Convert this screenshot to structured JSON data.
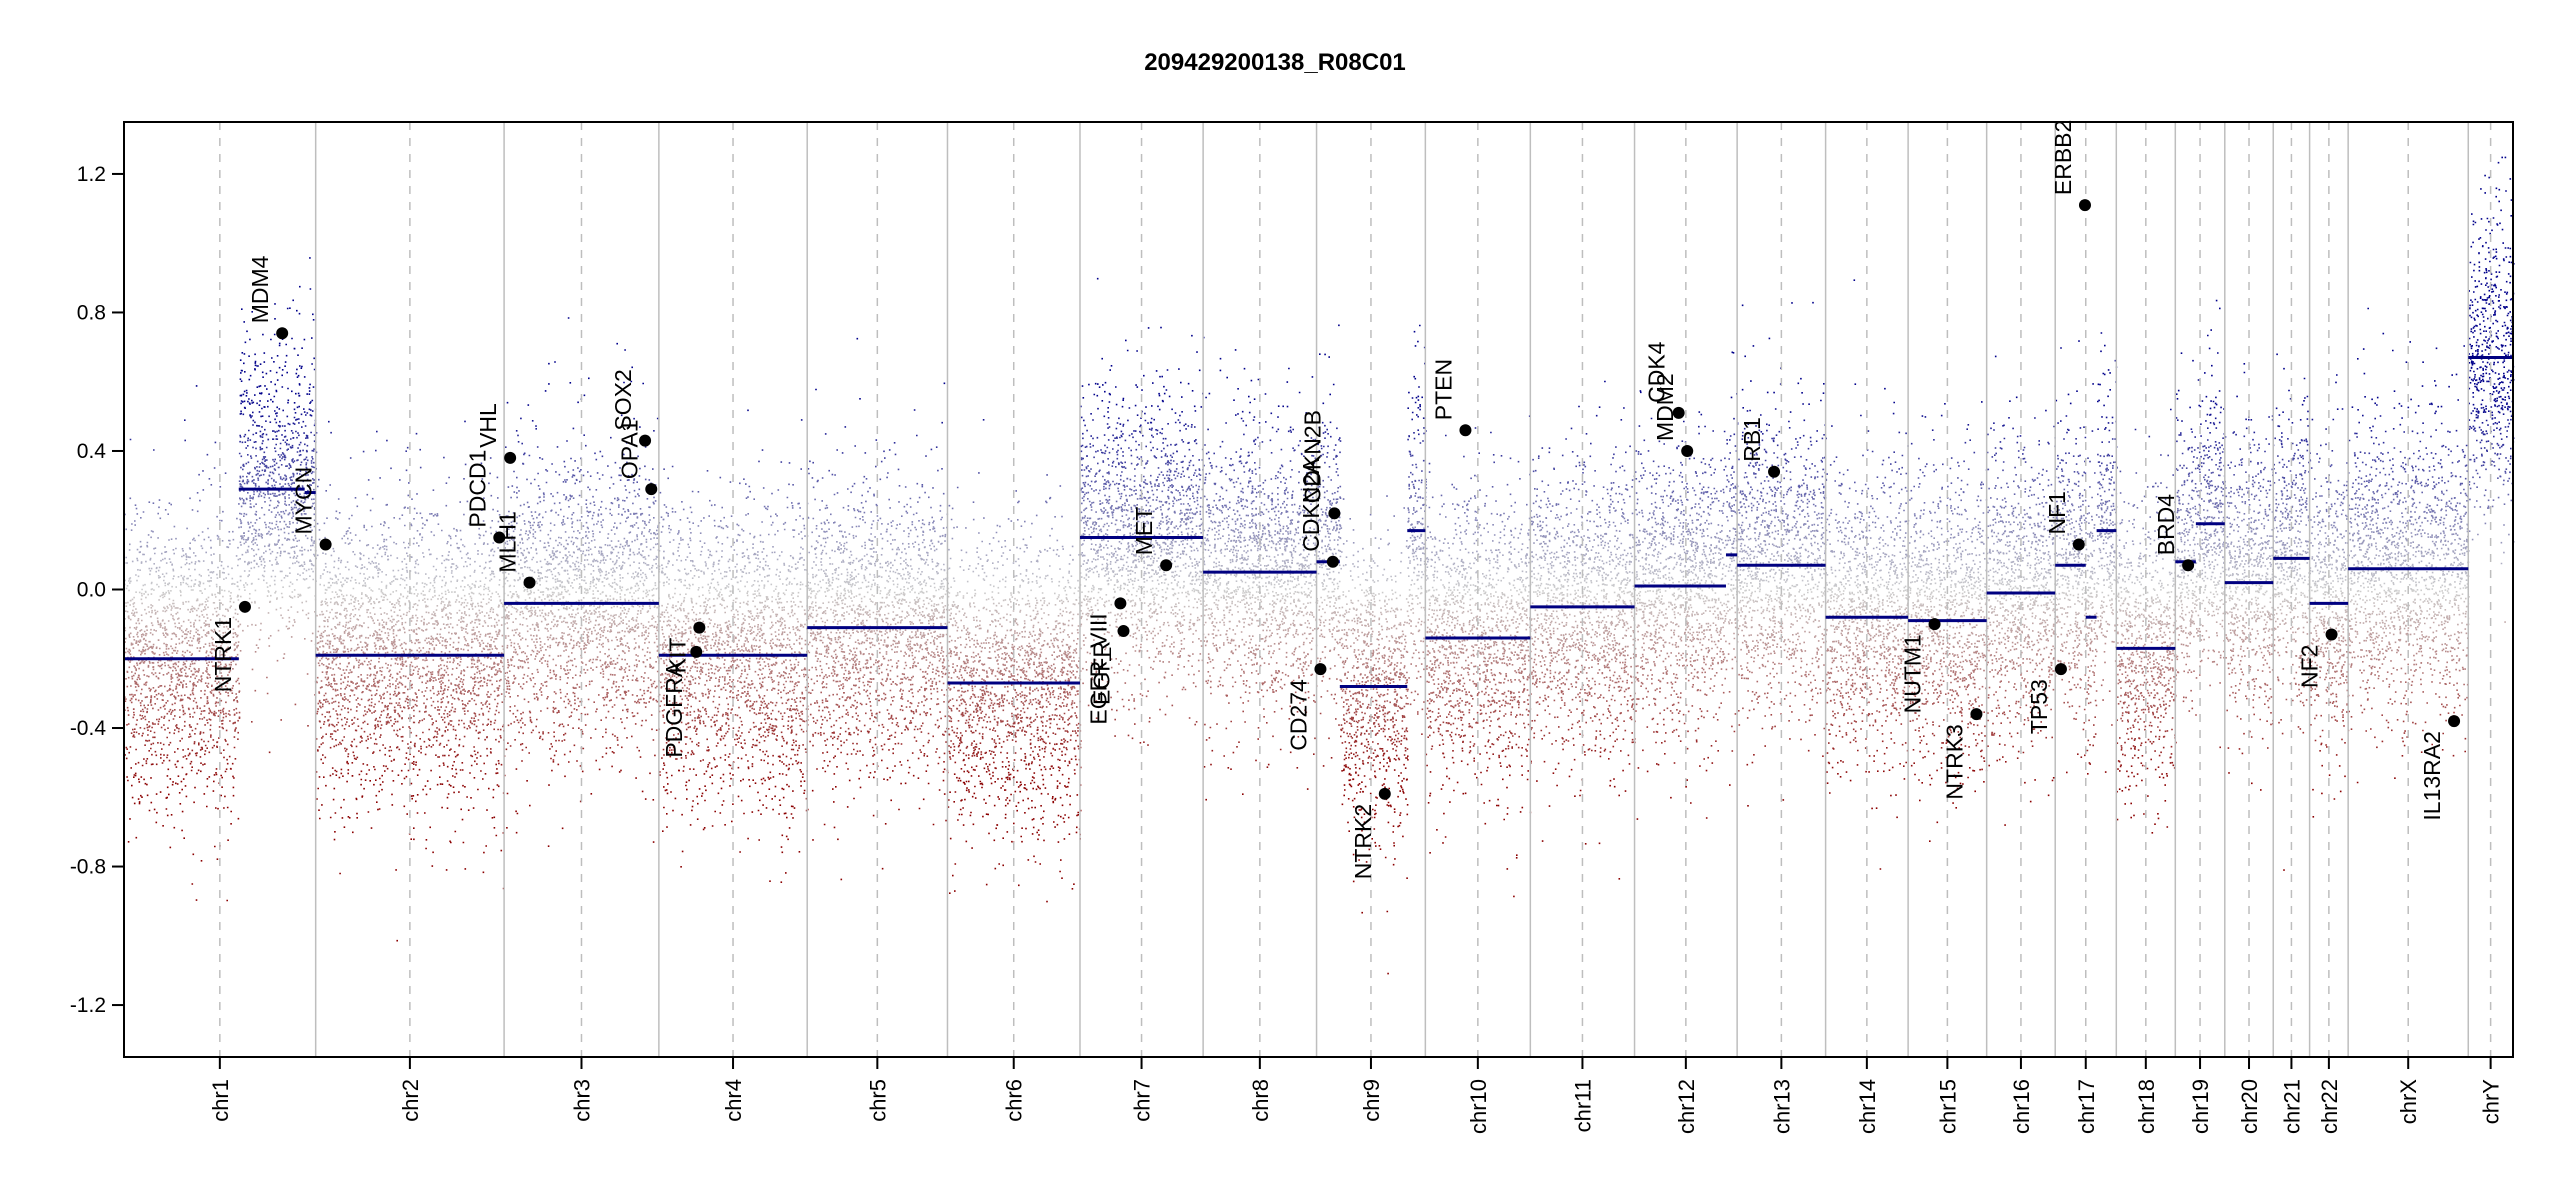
{
  "chart_data": {
    "type": "scatter",
    "title": "209429200138_R08C01",
    "xlabel": "",
    "ylabel": "",
    "ylim": [
      -1.35,
      1.35
    ],
    "yticks": [
      -1.2,
      -0.8,
      -0.4,
      0.0,
      0.4,
      0.8,
      1.2
    ],
    "ytick_labels": [
      "-1.2",
      "-0.8",
      "-0.4",
      "0.0",
      "0.4",
      "0.8",
      "1.2"
    ],
    "grid": false,
    "colors": {
      "gain": "#00008b",
      "loss": "#8b0000",
      "neutral": "#c8c8c8",
      "segment": "#000080",
      "separator": "#bebebe"
    },
    "chromosomes": [
      {
        "name": "chr1",
        "start": 0.0,
        "end": 247.2
      },
      {
        "name": "chr2",
        "start": 247.2,
        "end": 490.2
      },
      {
        "name": "chr3",
        "start": 490.2,
        "end": 689.8
      },
      {
        "name": "chr4",
        "start": 689.8,
        "end": 881.1
      },
      {
        "name": "chr5",
        "start": 881.1,
        "end": 1062.0
      },
      {
        "name": "chr6",
        "start": 1062.0,
        "end": 1232.9
      },
      {
        "name": "chr7",
        "start": 1232.9,
        "end": 1391.7
      },
      {
        "name": "chr8",
        "start": 1391.7,
        "end": 1538.0
      },
      {
        "name": "chr9",
        "start": 1538.0,
        "end": 1678.3
      },
      {
        "name": "chr10",
        "start": 1678.3,
        "end": 1813.7
      },
      {
        "name": "chr11",
        "start": 1813.7,
        "end": 1948.1
      },
      {
        "name": "chr12",
        "start": 1948.1,
        "end": 2080.4
      },
      {
        "name": "chr13",
        "start": 2080.4,
        "end": 2194.5
      },
      {
        "name": "chr14",
        "start": 2194.5,
        "end": 2300.9
      },
      {
        "name": "chr15",
        "start": 2300.9,
        "end": 2402.2
      },
      {
        "name": "chr16",
        "start": 2402.2,
        "end": 2490.6
      },
      {
        "name": "chr17",
        "start": 2490.6,
        "end": 2569.4
      },
      {
        "name": "chr18",
        "start": 2569.4,
        "end": 2645.5
      },
      {
        "name": "chr19",
        "start": 2645.5,
        "end": 2709.3
      },
      {
        "name": "chr20",
        "start": 2709.3,
        "end": 2771.8
      },
      {
        "name": "chr21",
        "start": 2771.8,
        "end": 2818.7
      },
      {
        "name": "chr22",
        "start": 2818.7,
        "end": 2868.4
      },
      {
        "name": "chrX",
        "start": 2868.4,
        "end": 3023.3
      },
      {
        "name": "chrY",
        "start": 3023.3,
        "end": 3081.0
      }
    ],
    "segments": [
      {
        "chr": "chr1",
        "x0": 0.0,
        "x1": 148.0,
        "value": -0.2
      },
      {
        "chr": "chr1",
        "x0": 148.0,
        "x1": 233.0,
        "value": 0.29
      },
      {
        "chr": "chr1",
        "x0": 233.0,
        "x1": 247.2,
        "value": 0.28
      },
      {
        "chr": "chr2",
        "x0": 247.2,
        "x1": 490.2,
        "value": -0.19
      },
      {
        "chr": "chr3",
        "x0": 490.2,
        "x1": 689.8,
        "value": -0.04
      },
      {
        "chr": "chr4",
        "x0": 689.8,
        "x1": 881.1,
        "value": -0.19
      },
      {
        "chr": "chr5",
        "x0": 881.1,
        "x1": 1062.0,
        "value": -0.11
      },
      {
        "chr": "chr6",
        "x0": 1062.0,
        "x1": 1232.9,
        "value": -0.27
      },
      {
        "chr": "chr7",
        "x0": 1232.9,
        "x1": 1391.7,
        "value": 0.15
      },
      {
        "chr": "chr8",
        "x0": 1391.7,
        "x1": 1538.0,
        "value": 0.05
      },
      {
        "chr": "chr9",
        "x0": 1538.0,
        "x1": 1568.0,
        "value": 0.08
      },
      {
        "chr": "chr9",
        "x0": 1568.0,
        "x1": 1655.0,
        "value": -0.28
      },
      {
        "chr": "chr9",
        "x0": 1655.0,
        "x1": 1678.3,
        "value": 0.17
      },
      {
        "chr": "chr10",
        "x0": 1678.3,
        "x1": 1813.7,
        "value": -0.14
      },
      {
        "chr": "chr11",
        "x0": 1813.7,
        "x1": 1948.1,
        "value": -0.05
      },
      {
        "chr": "chr12",
        "x0": 1948.1,
        "x1": 2066.0,
        "value": 0.01
      },
      {
        "chr": "chr12",
        "x0": 2066.0,
        "x1": 2080.4,
        "value": 0.1
      },
      {
        "chr": "chr13",
        "x0": 2080.4,
        "x1": 2194.5,
        "value": 0.07
      },
      {
        "chr": "chr14",
        "x0": 2194.5,
        "x1": 2300.9,
        "value": -0.08
      },
      {
        "chr": "chr15",
        "x0": 2300.9,
        "x1": 2402.2,
        "value": -0.09
      },
      {
        "chr": "chr16",
        "x0": 2402.2,
        "x1": 2490.6,
        "value": -0.01
      },
      {
        "chr": "chr17",
        "x0": 2490.6,
        "x1": 2530.0,
        "value": 0.07
      },
      {
        "chr": "chr17",
        "x0": 2530.0,
        "x1": 2544.0,
        "value": -0.08
      },
      {
        "chr": "chr17",
        "x0": 2544.0,
        "x1": 2569.4,
        "value": 0.17
      },
      {
        "chr": "chr18",
        "x0": 2569.4,
        "x1": 2645.5,
        "value": -0.17
      },
      {
        "chr": "chr19",
        "x0": 2645.5,
        "x1": 2672.0,
        "value": 0.08
      },
      {
        "chr": "chr19",
        "x0": 2672.0,
        "x1": 2709.3,
        "value": 0.19
      },
      {
        "chr": "chr20",
        "x0": 2709.3,
        "x1": 2771.8,
        "value": 0.02
      },
      {
        "chr": "chr21",
        "x0": 2771.8,
        "x1": 2818.7,
        "value": 0.09
      },
      {
        "chr": "chr22",
        "x0": 2818.7,
        "x1": 2868.4,
        "value": -0.04
      },
      {
        "chr": "chrX",
        "x0": 2868.4,
        "x1": 3023.3,
        "value": 0.06
      },
      {
        "chr": "chrY",
        "x0": 3023.3,
        "x1": 3081.0,
        "value": 0.67
      }
    ],
    "genes": [
      {
        "name": "NTRK1",
        "x": 156.0,
        "value": -0.05
      },
      {
        "name": "MDM4",
        "x": 204.0,
        "value": 0.74
      },
      {
        "name": "MYCN",
        "x": 260.0,
        "value": 0.13
      },
      {
        "name": "PDCD1",
        "x": 484.0,
        "value": 0.15
      },
      {
        "name": "VHL",
        "x": 498.0,
        "value": 0.38
      },
      {
        "name": "MLH1",
        "x": 523.0,
        "value": 0.02
      },
      {
        "name": "SOX2",
        "x": 672.0,
        "value": 0.43
      },
      {
        "name": "OPA1",
        "x": 680.0,
        "value": 0.29
      },
      {
        "name": "PDGFRA",
        "x": 738.0,
        "value": -0.18
      },
      {
        "name": "KIT",
        "x": 742.0,
        "value": -0.11
      },
      {
        "name": "EGFR_VIII",
        "x": 1285.0,
        "value": -0.04
      },
      {
        "name": "EGFR",
        "x": 1289.0,
        "value": -0.12
      },
      {
        "name": "MET",
        "x": 1344.0,
        "value": 0.07
      },
      {
        "name": "CD274",
        "x": 1543.0,
        "value": -0.23
      },
      {
        "name": "CDKN2A",
        "x": 1559.0,
        "value": 0.08
      },
      {
        "name": "CDKN2B",
        "x": 1561.0,
        "value": 0.22
      },
      {
        "name": "NTRK2",
        "x": 1626.0,
        "value": -0.59
      },
      {
        "name": "PTEN",
        "x": 1730.0,
        "value": 0.46
      },
      {
        "name": "CDK4",
        "x": 2005.0,
        "value": 0.51
      },
      {
        "name": "MDM2",
        "x": 2016.0,
        "value": 0.4
      },
      {
        "name": "RB1",
        "x": 2128.0,
        "value": 0.34
      },
      {
        "name": "NUTM1",
        "x": 2335.0,
        "value": -0.1
      },
      {
        "name": "NTRK3",
        "x": 2389.0,
        "value": -0.36
      },
      {
        "name": "TP53",
        "x": 2498.0,
        "value": -0.23
      },
      {
        "name": "NF1",
        "x": 2521.0,
        "value": 0.13
      },
      {
        "name": "ERBB2",
        "x": 2529.0,
        "value": 1.11
      },
      {
        "name": "BRD4",
        "x": 2662.0,
        "value": 0.07
      },
      {
        "name": "NF2",
        "x": 2847.0,
        "value": -0.13
      },
      {
        "name": "IL13RA2",
        "x": 3005.0,
        "value": -0.38
      }
    ],
    "gene_labels": {
      "NTRK1": "NTRK1",
      "MDM4": "MDM4",
      "MYCN": "MYCN",
      "PDCD1": "PDCD1",
      "VHL": "VHL",
      "MLH1": "MLH1",
      "SOX2": "SOX2",
      "OPA1": "OPA1",
      "PDGFRA": "PDGFRA",
      "KIT": "KIT",
      "EGFR_VIII": "EGFR_VIII",
      "EGFR": "EGFR",
      "MET": "MET",
      "CD274": "CD274",
      "CDKN2A": "CDKN2A",
      "CDKN2B": "CDKN2B",
      "NTRK2": "NTRK2",
      "PTEN": "PTEN",
      "CDK4": "CDK4",
      "MDM2": "MDM2",
      "RB1": "RB1",
      "NUTM1": "NUTM1",
      "NTRK3": "NTRK3",
      "TP53": "TP53",
      "NF1": "NF1",
      "ERBB2": "ERBB2",
      "BRD4": "BRD4",
      "NF2": "NF2",
      "IL13RA2": "IL13RA2"
    }
  }
}
